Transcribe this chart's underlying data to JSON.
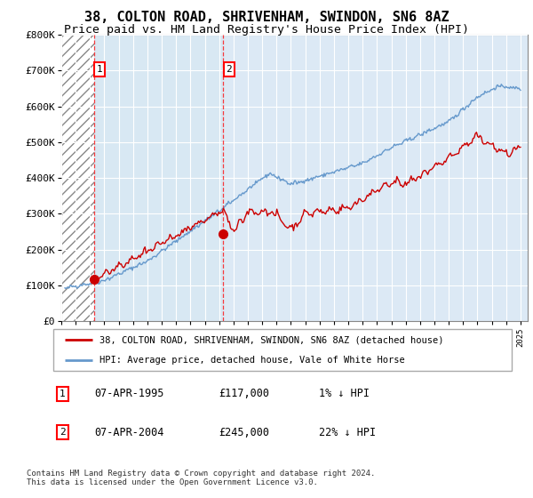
{
  "title": "38, COLTON ROAD, SHRIVENHAM, SWINDON, SN6 8AZ",
  "subtitle": "Price paid vs. HM Land Registry's House Price Index (HPI)",
  "ylim": [
    0,
    800000
  ],
  "yticks": [
    0,
    100000,
    200000,
    300000,
    400000,
    500000,
    600000,
    700000,
    800000
  ],
  "ytick_labels": [
    "£0",
    "£100K",
    "£200K",
    "£300K",
    "£400K",
    "£500K",
    "£600K",
    "£700K",
    "£800K"
  ],
  "xmin": 1993.0,
  "xmax": 2025.5,
  "hatch_end": 1995.27,
  "shade_end": 2004.27,
  "vline1_x": 1995.27,
  "vline2_x": 2004.27,
  "sale1": {
    "date": "07-APR-1995",
    "price": 117000,
    "pct": "1%",
    "direction": "↓",
    "label": "1"
  },
  "sale2": {
    "date": "07-APR-2004",
    "price": 245000,
    "pct": "22%",
    "direction": "↓",
    "label": "2"
  },
  "legend_line1": "38, COLTON ROAD, SHRIVENHAM, SWINDON, SN6 8AZ (detached house)",
  "legend_line2": "HPI: Average price, detached house, Vale of White Horse",
  "footer": "Contains HM Land Registry data © Crown copyright and database right 2024.\nThis data is licensed under the Open Government Licence v3.0.",
  "price_color": "#cc0000",
  "hpi_color": "#6699cc",
  "background_color": "#dce9f5",
  "shade_color": "#c8d8eb",
  "grid_color": "#ffffff",
  "title_fontsize": 11,
  "subtitle_fontsize": 9.5
}
